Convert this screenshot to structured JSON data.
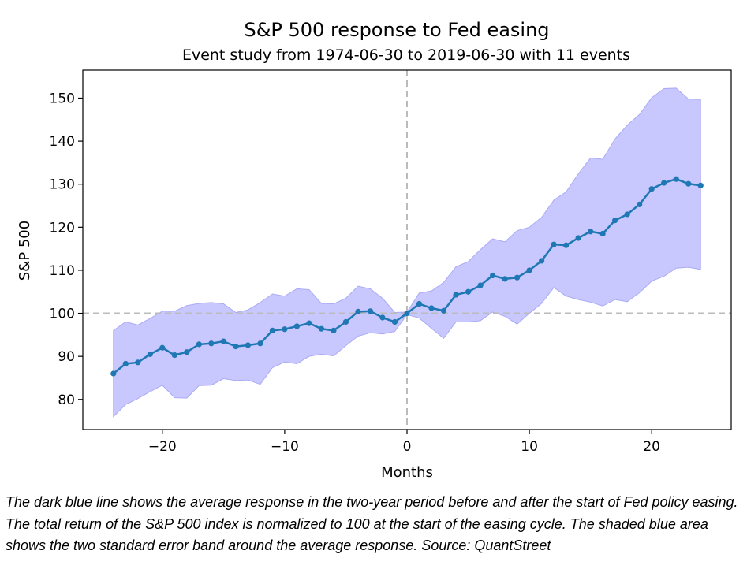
{
  "chart_data": {
    "type": "line",
    "title": "S&P 500 response to Fed easing",
    "subtitle": "Event study from 1974-06-30 to 2019-06-30 with 11 events",
    "xlabel": "Months",
    "ylabel": "S&P 500",
    "xlim": [
      -26.5,
      26.5
    ],
    "ylim": [
      73,
      156.5
    ],
    "xticks": [
      -20,
      -10,
      0,
      10,
      20
    ],
    "xtick_labels": [
      "−20",
      "−10",
      "0",
      "10",
      "20"
    ],
    "yticks": [
      80,
      90,
      100,
      110,
      120,
      130,
      140,
      150
    ],
    "ytick_labels": [
      "80",
      "90",
      "100",
      "110",
      "120",
      "130",
      "140",
      "150"
    ],
    "reference_lines": {
      "x": 0,
      "y": 100
    },
    "colors": {
      "line": "#1f77b4",
      "band": "#c8c8ff",
      "band_edge": "#aaaaf5",
      "reference": "#bbbbbb"
    },
    "x": [
      -24,
      -23,
      -22,
      -21,
      -20,
      -19,
      -18,
      -17,
      -16,
      -15,
      -14,
      -13,
      -12,
      -11,
      -10,
      -9,
      -8,
      -7,
      -6,
      -5,
      -4,
      -3,
      -2,
      -1,
      0,
      1,
      2,
      3,
      4,
      5,
      6,
      7,
      8,
      9,
      10,
      11,
      12,
      13,
      14,
      15,
      16,
      17,
      18,
      19,
      20,
      21,
      22,
      23,
      24
    ],
    "series": [
      {
        "values": [
          86.0,
          88.3,
          88.6,
          90.5,
          92.0,
          90.3,
          91.0,
          92.8,
          93.0,
          93.5,
          92.3,
          92.6,
          93.0,
          96.0,
          96.3,
          97.0,
          97.7,
          96.4,
          96.0,
          98.0,
          100.4,
          100.5,
          99.0,
          98.0,
          100.0,
          102.2,
          101.2,
          100.6,
          104.3,
          105.0,
          106.5,
          108.8,
          108.0,
          108.3,
          110.0,
          112.2,
          116.0,
          115.8,
          117.5,
          119.0,
          118.5,
          121.6,
          123.0,
          125.3,
          128.9,
          130.3,
          131.2,
          130.1,
          129.7
        ]
      }
    ],
    "band": {
      "upper": [
        96.0,
        98.0,
        97.3,
        98.8,
        100.5,
        100.5,
        101.8,
        102.3,
        102.5,
        102.2,
        100.2,
        100.8,
        102.5,
        104.5,
        104.0,
        105.7,
        105.5,
        102.3,
        102.2,
        103.5,
        106.3,
        105.7,
        103.5,
        100.2,
        100.3,
        104.7,
        105.2,
        107.2,
        110.8,
        112.0,
        114.8,
        117.3,
        116.6,
        119.2,
        120.0,
        122.3,
        126.3,
        128.2,
        132.4,
        136.1,
        135.8,
        140.5,
        143.7,
        146.2,
        150.1,
        152.2,
        152.3,
        149.8,
        149.7
      ],
      "lower": [
        76.0,
        78.8,
        80.2,
        81.8,
        83.3,
        80.4,
        80.3,
        83.2,
        83.3,
        84.8,
        84.4,
        84.5,
        83.5,
        87.4,
        88.7,
        88.3,
        90.0,
        90.5,
        90.1,
        92.5,
        94.7,
        95.5,
        95.2,
        95.8,
        99.7,
        98.9,
        96.5,
        94.2,
        98.0,
        98.0,
        98.3,
        100.3,
        99.3,
        97.5,
        100.0,
        102.3,
        106.0,
        104.0,
        103.2,
        102.6,
        101.7,
        103.2,
        102.7,
        104.8,
        107.5,
        108.6,
        110.5,
        110.7,
        110.2
      ]
    }
  },
  "caption": "The dark blue line shows the average response in the two-year period before and after the start of Fed policy easing. The total return of the S&P 500 index is normalized to 100 at the start of the easing cycle. The shaded blue area shows the two standard error band around the average response. Source: QuantStreet"
}
